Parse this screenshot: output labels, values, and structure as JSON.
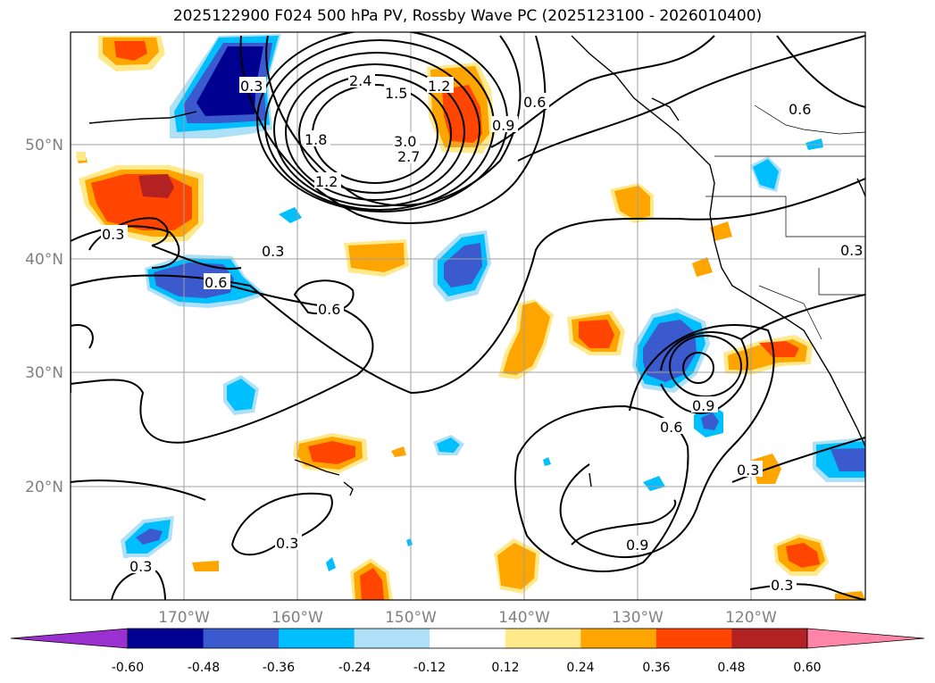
{
  "title": "2025122900 F024 500 hPa PV, Rossby Wave PC (2025123100 - 2026010400)",
  "map": {
    "lon_labels": [
      "170°W",
      "160°W",
      "150°W",
      "140°W",
      "130°W",
      "120°W"
    ],
    "lat_labels": [
      "50°N",
      "40°N",
      "30°N",
      "20°N"
    ],
    "contour_labels": [
      "0.3",
      "0.6",
      "0.9",
      "1.2",
      "1.5",
      "1.8",
      "2.4",
      "3.0",
      "2.7"
    ]
  },
  "colorbar": {
    "ticks": [
      "-0.60",
      "-0.48",
      "-0.36",
      "-0.24",
      "-0.12",
      "0.12",
      "0.24",
      "0.36",
      "0.48",
      "0.60"
    ],
    "colors": [
      "#9b30d0",
      "#000090",
      "#3a5acd",
      "#00bfff",
      "#aee0f8",
      "#ffffff",
      "#ffe98a",
      "#ffa500",
      "#ff4500",
      "#b22222",
      "#ff85a8"
    ]
  }
}
